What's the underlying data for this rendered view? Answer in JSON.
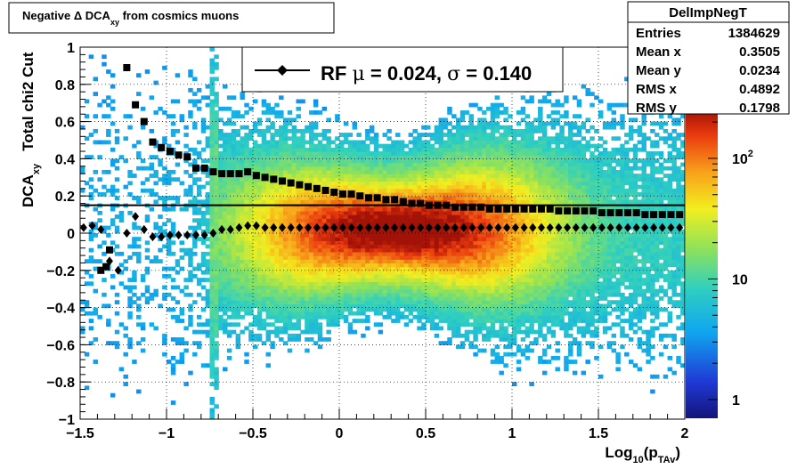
{
  "chart_data": {
    "type": "heatmap",
    "title_parts": {
      "pre": "Negative ",
      "delta": "Δ",
      "mid": " DCA",
      "sub": "xy",
      "post": " from cosmics muons"
    },
    "xlabel_parts": {
      "pre": "Log",
      "sub1": "10",
      "mid": "(p",
      "sub2": "TAv",
      "post": ")"
    },
    "ylabel_parts": {
      "pre": "DCA",
      "sub": "xy",
      "post": "   Total chi2 Cut"
    },
    "xlim": [
      -1.5,
      2.0
    ],
    "ylim": [
      -1.0,
      1.0
    ],
    "x_ticks": [
      {
        "v": -1.5,
        "label": "−1.5"
      },
      {
        "v": -1.0,
        "label": "−1"
      },
      {
        "v": -0.5,
        "label": "−0.5"
      },
      {
        "v": 0.0,
        "label": "0"
      },
      {
        "v": 0.5,
        "label": "0.5"
      },
      {
        "v": 1.0,
        "label": "1"
      },
      {
        "v": 1.5,
        "label": "1.5"
      },
      {
        "v": 2.0,
        "label": "2"
      }
    ],
    "y_ticks": [
      {
        "v": 1.0,
        "label": "1"
      },
      {
        "v": 0.8,
        "label": "0.8"
      },
      {
        "v": 0.6,
        "label": "0.6"
      },
      {
        "v": 0.4,
        "label": "0.4"
      },
      {
        "v": 0.2,
        "label": "0.2"
      },
      {
        "v": 0.0,
        "label": "0"
      },
      {
        "v": -0.2,
        "label": "−0.2"
      },
      {
        "v": -0.4,
        "label": "−0.4"
      },
      {
        "v": -0.6,
        "label": "−0.6"
      },
      {
        "v": -0.8,
        "label": "−0.8"
      },
      {
        "v": -1.0,
        "label": "−1"
      }
    ],
    "grid": true,
    "colorbar": {
      "scale": "log",
      "range": [
        0.7,
        250
      ],
      "labels": [
        {
          "v": 1,
          "label": "1"
        },
        {
          "v": 10,
          "label": "10"
        },
        {
          "v": 100,
          "label": "10",
          "sup": "2"
        }
      ]
    },
    "fit_line_y": 0.15,
    "legend": {
      "location": "top-center",
      "prefix": "RF ",
      "mu_sym": "μ",
      "mu_text": " =  0.024, ",
      "sigma_sym": "σ",
      "sigma_text": " =   0.140"
    },
    "stats_box": {
      "title": "DelImpNegT",
      "rows": [
        {
          "label": "Entries",
          "value": "1384629"
        },
        {
          "label": "Mean x",
          "value": "0.3505"
        },
        {
          "label": "Mean y",
          "value": "0.0234"
        },
        {
          "label": "RMS x",
          "value": "0.4892"
        },
        {
          "label": "RMS y",
          "value": "0.1798"
        }
      ]
    },
    "series": [
      {
        "marker": "square",
        "x": [
          -1.23,
          -1.18,
          -1.13,
          -1.08,
          -1.03,
          -0.98,
          -0.93,
          -0.88,
          -0.83,
          -0.78,
          -0.73,
          -0.68,
          -0.63,
          -0.58,
          -0.53,
          -0.48,
          -0.43,
          -0.38,
          -0.33,
          -0.28,
          -0.23,
          -0.18,
          -0.13,
          -0.08,
          -0.03,
          0.02,
          0.07,
          0.12,
          0.17,
          0.22,
          0.27,
          0.32,
          0.37,
          0.42,
          0.47,
          0.52,
          0.57,
          0.62,
          0.67,
          0.72,
          0.77,
          0.82,
          0.87,
          0.92,
          0.97,
          1.02,
          1.07,
          1.12,
          1.17,
          1.22,
          1.27,
          1.32,
          1.37,
          1.42,
          1.47,
          1.52,
          1.57,
          1.62,
          1.67,
          1.72,
          1.77,
          1.82,
          1.87,
          1.92,
          1.97
        ],
        "y": [
          0.89,
          0.69,
          0.6,
          0.49,
          0.46,
          0.44,
          0.42,
          0.41,
          0.35,
          0.35,
          0.33,
          0.32,
          0.32,
          0.32,
          0.33,
          0.31,
          0.3,
          0.29,
          0.28,
          0.27,
          0.26,
          0.25,
          0.24,
          0.23,
          0.22,
          0.21,
          0.21,
          0.2,
          0.19,
          0.19,
          0.18,
          0.18,
          0.17,
          0.16,
          0.16,
          0.15,
          0.15,
          0.15,
          0.14,
          0.14,
          0.14,
          0.14,
          0.13,
          0.13,
          0.13,
          0.13,
          0.13,
          0.13,
          0.13,
          0.13,
          0.12,
          0.12,
          0.12,
          0.12,
          0.12,
          0.11,
          0.11,
          0.11,
          0.11,
          0.11,
          0.1,
          0.1,
          0.1,
          0.1,
          0.1
        ]
      },
      {
        "marker": "diamond",
        "x": [
          -1.48,
          -1.43,
          -1.38,
          -1.33,
          -1.28,
          -1.23,
          -1.18,
          -1.13,
          -1.08,
          -1.03,
          -0.98,
          -0.93,
          -0.88,
          -0.83,
          -0.78,
          -0.73,
          -0.68,
          -0.63,
          -0.58,
          -0.53,
          -0.48,
          -0.43,
          -0.38,
          -0.33,
          -0.28,
          -0.23,
          -0.18,
          -0.13,
          -0.08,
          -0.03,
          0.02,
          0.07,
          0.12,
          0.17,
          0.22,
          0.27,
          0.32,
          0.37,
          0.42,
          0.47,
          0.52,
          0.57,
          0.62,
          0.67,
          0.72,
          0.77,
          0.82,
          0.87,
          0.92,
          0.97,
          1.02,
          1.07,
          1.12,
          1.17,
          1.22,
          1.27,
          1.32,
          1.37,
          1.42,
          1.47,
          1.52,
          1.57,
          1.62,
          1.67,
          1.72,
          1.77,
          1.82,
          1.87,
          1.92,
          1.97
        ],
        "y": [
          0.03,
          0.04,
          0.02,
          -0.15,
          -0.2,
          0.0,
          0.09,
          0.02,
          -0.02,
          -0.02,
          -0.01,
          -0.01,
          -0.01,
          -0.01,
          -0.01,
          -0.0,
          0.02,
          0.02,
          0.03,
          0.04,
          0.04,
          0.03,
          0.03,
          0.03,
          0.03,
          0.03,
          0.03,
          0.03,
          0.03,
          0.03,
          0.03,
          0.03,
          0.03,
          0.03,
          0.03,
          0.03,
          0.03,
          0.03,
          0.03,
          0.03,
          0.03,
          0.03,
          0.03,
          0.03,
          0.03,
          0.03,
          0.03,
          0.03,
          0.03,
          0.03,
          0.03,
          0.03,
          0.03,
          0.03,
          0.03,
          0.03,
          0.03,
          0.03,
          0.03,
          0.03,
          0.03,
          0.03,
          0.03,
          0.03,
          0.03,
          0.03,
          0.03,
          0.03,
          0.03,
          0.03
        ]
      }
    ],
    "outlier_points": {
      "x": [
        -1.38,
        -1.35,
        -1.33
      ],
      "y": [
        -0.2,
        -0.18,
        -0.09
      ],
      "marker": "square"
    }
  }
}
